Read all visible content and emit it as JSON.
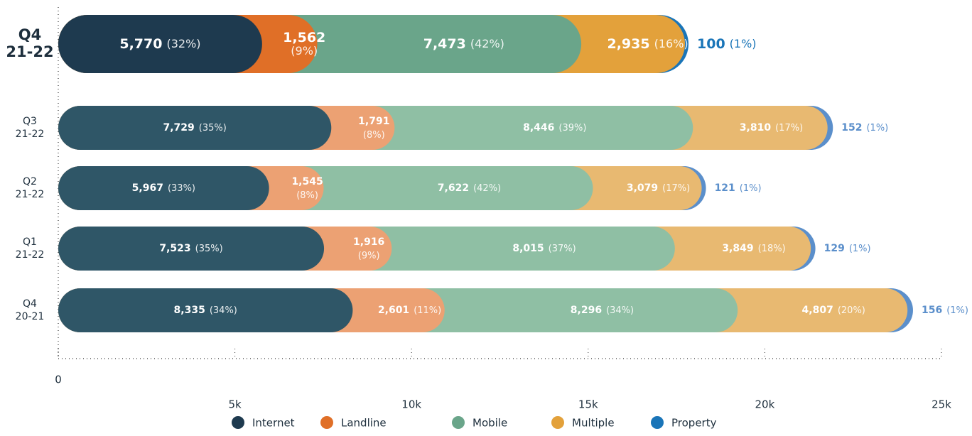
{
  "chart_data": {
    "type": "stacked_bar_horizontal",
    "categories": [
      "Q4 21-22",
      "Q3 21-22",
      "Q2 21-22",
      "Q1 21-22",
      "Q4 20-21"
    ],
    "highlight_category": 0,
    "series": [
      {
        "name": "Internet",
        "color": "#1e3a4f",
        "light_color": "#2f5667",
        "values": [
          5770,
          7729,
          5967,
          7523,
          8335
        ],
        "value_labels": [
          "5,770",
          "7,729",
          "5,967",
          "7,523",
          "8,335"
        ],
        "shares": [
          32,
          35,
          33,
          35,
          34
        ],
        "share_labels": [
          "(32%)",
          "(35%)",
          "(33%)",
          "(35%)",
          "(34%)"
        ]
      },
      {
        "name": "Landline",
        "color": "#e06f27",
        "light_color": "#eca173",
        "values": [
          1562,
          1791,
          1545,
          1916,
          2601
        ],
        "value_labels": [
          "1,562",
          "1,791",
          "1,545",
          "1,916",
          "2,601"
        ],
        "shares": [
          9,
          8,
          8,
          9,
          11
        ],
        "share_labels": [
          "(9%)",
          "(8%)",
          "(8%)",
          "(9%)",
          "(11%)"
        ]
      },
      {
        "name": "Mobile",
        "color": "#6aa58a",
        "light_color": "#8fbfa4",
        "values": [
          7473,
          8446,
          7622,
          8015,
          8296
        ],
        "value_labels": [
          "7,473",
          "8,446",
          "7,622",
          "8,015",
          "8,296"
        ],
        "shares": [
          42,
          39,
          42,
          37,
          34
        ],
        "share_labels": [
          "(42%)",
          "(39%)",
          "(42%)",
          "(37%)",
          "(34%)"
        ]
      },
      {
        "name": "Multiple",
        "color": "#e3a13b",
        "light_color": "#e8b971",
        "values": [
          2935,
          3810,
          3079,
          3849,
          4807
        ],
        "value_labels": [
          "2,935",
          "3,810",
          "3,079",
          "3,849",
          "4,807"
        ],
        "shares": [
          16,
          17,
          17,
          18,
          20
        ],
        "share_labels": [
          "(16%)",
          "(17%)",
          "(17%)",
          "(18%)",
          "(20%)"
        ]
      },
      {
        "name": "Property",
        "color": "#1a75b8",
        "light_color": "#5b8fcb",
        "values": [
          100,
          152,
          121,
          129,
          156
        ],
        "value_labels": [
          "100",
          "152",
          "121",
          "129",
          "156"
        ],
        "shares": [
          1,
          1,
          1,
          1,
          1
        ],
        "share_labels": [
          "(1%)",
          "(1%)",
          "(1%)",
          "(1%)",
          "(1%)"
        ]
      }
    ],
    "xlim": [
      0,
      25000
    ],
    "xticks": [
      0,
      {
        "value": 5000,
        "label": "5k"
      },
      {
        "value": 10000,
        "label": "10k"
      },
      {
        "value": 15000,
        "label": "15k"
      },
      {
        "value": 20000,
        "label": "20k"
      },
      {
        "value": 25000,
        "label": "25k"
      }
    ],
    "legend": "bottom"
  }
}
